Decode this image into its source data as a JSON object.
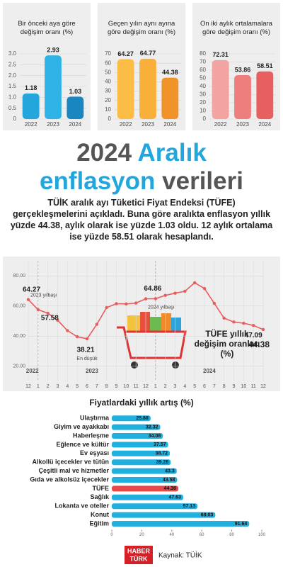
{
  "chart_data": [
    {
      "type": "bar",
      "title": "Bir önceki aya göre değişim oranı (%)",
      "categories": [
        "2022",
        "2023",
        "2024"
      ],
      "values": [
        1.18,
        2.93,
        1.03
      ],
      "colors": [
        "#22a6dc",
        "#2fb3e6",
        "#1a86bf"
      ],
      "ylim": [
        0,
        3
      ],
      "yticks": [
        0,
        0.5,
        {
          "value": 1,
          "label": "1.0"
        },
        1.5,
        {
          "value": 2,
          "label": "2.0"
        },
        2.5,
        {
          "value": 3,
          "label": "3.0"
        }
      ],
      "grid": true
    },
    {
      "type": "bar",
      "title": "Geçen yılın aynı ayına göre değişim oranı (%)",
      "categories": [
        "2022",
        "2023",
        "2024"
      ],
      "values": [
        64.27,
        64.77,
        44.38
      ],
      "colors": [
        "#fbbd45",
        "#f9b03a",
        "#f0942a"
      ],
      "ylim": [
        0,
        70
      ],
      "yticks": [
        0,
        10,
        20,
        30,
        40,
        50,
        60,
        70
      ],
      "grid": true
    },
    {
      "type": "bar",
      "title": "On iki aylık ortalamalara göre değişim oranı (%)",
      "categories": [
        "2022",
        "2023",
        "2024"
      ],
      "values": [
        72.31,
        53.86,
        58.51
      ],
      "colors": [
        "#f4a3a3",
        "#ee7d7d",
        "#e85f5f"
      ],
      "ylim": [
        0,
        80
      ],
      "yticks": [
        0,
        10,
        20,
        30,
        40,
        50,
        60,
        70,
        80
      ],
      "grid": true
    },
    {
      "type": "line",
      "title": "TÜFE yıllık değişim oranları (%)",
      "categories": [
        "12",
        "1",
        "2",
        "3",
        "4",
        "5",
        "6",
        "7",
        "8",
        "9",
        "10",
        "11",
        "12",
        "1",
        "2",
        "3",
        "4",
        "5",
        "6",
        "7",
        "8",
        "9",
        "10",
        "11",
        "12"
      ],
      "values": [
        64.27,
        57.58,
        55.18,
        50.51,
        43.68,
        39.59,
        38.21,
        47.83,
        58.94,
        61.53,
        61.36,
        61.98,
        64.77,
        64.86,
        67.07,
        68.5,
        69.8,
        75.45,
        71.6,
        61.78,
        51.97,
        49.38,
        48.58,
        47.09,
        44.38
      ],
      "color": "#e85c5c",
      "ylim": [
        10,
        90
      ],
      "yticks": [
        {
          "value": 20,
          "label": "20.00"
        },
        {
          "value": 40,
          "label": "40.00"
        },
        {
          "value": 60,
          "label": "60.00"
        },
        {
          "value": 80,
          "label": "80.00"
        }
      ],
      "grid": true,
      "annotations": [
        "2023 yılbaşı",
        "En düşük",
        "2024 yılbaşı"
      ],
      "year_labels": [
        "2022",
        "2023",
        "2024"
      ]
    },
    {
      "type": "hbar",
      "title": "Fiyatlardaki yıllık artış (%)",
      "categories": [
        "Ulaştırma",
        "Giyim ve ayakkabı",
        "Haberleşme",
        "Eğlence ve kültür",
        "Ev eşyası",
        "Alkollü içecekler ve tütün",
        "Çeşitli mal ve hizmetler",
        "Gıda ve alkolsüz içecekler",
        "TÜFE",
        "Sağlık",
        "Lokanta ve oteller",
        "Konut",
        "Eğitim"
      ],
      "values": [
        25.88,
        32.32,
        34.08,
        37.57,
        38.72,
        39.28,
        43.3,
        43.58,
        44.38,
        47.63,
        57.13,
        69.03,
        91.64
      ],
      "colors": [
        "#1fb0e0",
        "#1fb0e0",
        "#1fb0e0",
        "#1fb0e0",
        "#1fb0e0",
        "#1fb0e0",
        "#1fb0e0",
        "#1fb0e0",
        "#e84848",
        "#1fb0e0",
        "#1fb0e0",
        "#1fb0e0",
        "#1fb0e0"
      ],
      "xlim": [
        0,
        100
      ],
      "xticks": [
        0,
        20,
        40,
        60,
        80,
        100
      ]
    }
  ],
  "headline": [
    "2024",
    "Aralık",
    "enflasyon",
    "verileri"
  ],
  "paragraph": "TÜİK aralık ayı Tüketici Fiyat Endeksi (TÜFE) gerçekleşmelerini açıkladı. Buna göre aralıkta enflasyon yıllık yüzde 44.38, aylık olarak ise yüzde 1.03 oldu. 12 aylık ortalama ise yüzde 58.51 olarak hesaplandı.",
  "footer": {
    "logo": [
      "HABER",
      "TÜRK"
    ],
    "source": "Kaynak: TÜİK"
  }
}
